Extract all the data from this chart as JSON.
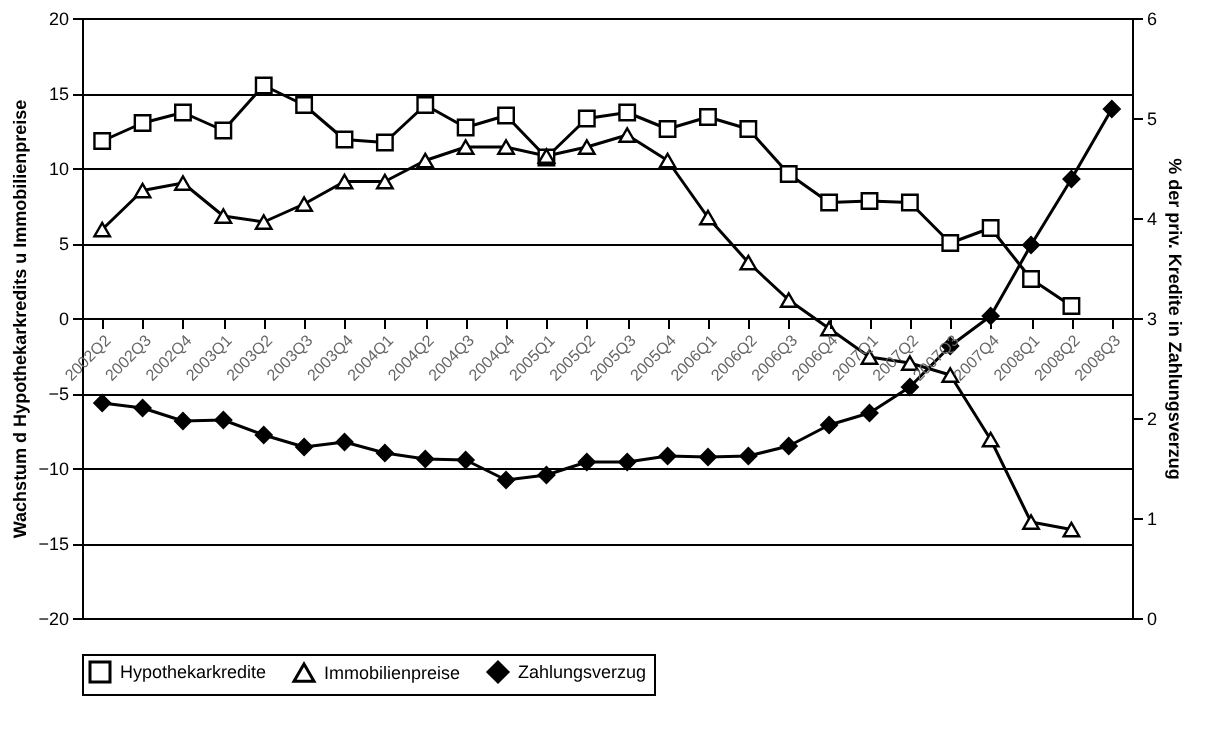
{
  "chart_data": {
    "type": "line",
    "categories": [
      "2002Q2",
      "2002Q3",
      "2002Q4",
      "2003Q1",
      "2003Q2",
      "2003Q3",
      "2003Q4",
      "2004Q1",
      "2004Q2",
      "2004Q3",
      "2004Q4",
      "2005Q1",
      "2005Q2",
      "2005Q3",
      "2005Q4",
      "2006Q1",
      "2006Q2",
      "2006Q3",
      "2006Q4",
      "2007Q1",
      "2007Q2",
      "2007Q3",
      "2007Q4",
      "2008Q1",
      "2008Q2",
      "2008Q3"
    ],
    "series": [
      {
        "name": "Hypothekarkredite",
        "color": "#000000",
        "marker": "square",
        "values": [
          11.8,
          13.0,
          13.7,
          12.5,
          15.5,
          14.2,
          11.9,
          11.7,
          14.2,
          12.7,
          13.5,
          10.7,
          13.3,
          13.7,
          12.6,
          13.4,
          12.6,
          9.6,
          7.7,
          7.8,
          7.7,
          5.0,
          6.0,
          2.6,
          0.8,
          null
        ]
      },
      {
        "name": "Immobilienpreise",
        "color": "#000000",
        "marker": "triangle",
        "values": [
          5.9,
          8.5,
          9.0,
          6.8,
          6.4,
          7.6,
          9.1,
          9.1,
          10.5,
          11.4,
          11.4,
          10.8,
          11.4,
          12.2,
          10.5,
          6.7,
          3.7,
          1.2,
          -0.7,
          -2.6,
          -3.0,
          -3.8,
          -8.1,
          -13.6,
          -14.1,
          null
        ]
      },
      {
        "name": "Zahlungsverzug",
        "color": "#000000",
        "marker": "diamond",
        "axis": "y2",
        "values": [
          2.15,
          2.1,
          1.97,
          1.98,
          1.83,
          1.71,
          1.76,
          1.65,
          1.59,
          1.58,
          1.38,
          1.43,
          1.56,
          1.56,
          1.62,
          1.61,
          1.62,
          1.72,
          1.93,
          2.05,
          2.31,
          2.72,
          3.02,
          3.73,
          4.39,
          5.09
        ]
      }
    ],
    "ylabel": "Wachstum d Hypothekarkredits u Immobilienpreise",
    "y2label": "% der priv. Kredite in Zahlungsverzug",
    "ylim": [
      -20,
      20
    ],
    "yticks": [
      -20,
      -15,
      -10,
      -5,
      0,
      5,
      10,
      15,
      20
    ],
    "y2lim": [
      0,
      6
    ],
    "y2ticks": [
      0,
      1,
      2,
      3,
      4,
      5,
      6
    ],
    "grid": "y",
    "legend": "bottom",
    "line_style": "solid"
  }
}
